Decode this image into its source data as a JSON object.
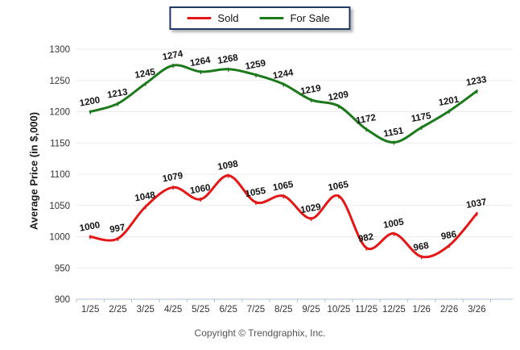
{
  "legend": {
    "items": [
      {
        "label": "Sold",
        "color": "#e31717"
      },
      {
        "label": "For Sale",
        "color": "#1c7a1c"
      }
    ]
  },
  "footer": {
    "copyright": "Copyright © Trendgraphix, Inc."
  },
  "chart_data": {
    "type": "line",
    "categories": [
      "1/25",
      "2/25",
      "3/25",
      "4/25",
      "5/25",
      "6/25",
      "7/25",
      "8/25",
      "9/25",
      "10/25",
      "11/25",
      "12/25",
      "1/26",
      "2/26",
      "3/26"
    ],
    "series": [
      {
        "name": "Sold",
        "color": "#e31717",
        "values": [
          1000,
          997,
          1048,
          1079,
          1060,
          1098,
          1055,
          1065,
          1029,
          1065,
          982,
          1005,
          968,
          986,
          1037
        ]
      },
      {
        "name": "For Sale",
        "color": "#1c7a1c",
        "values": [
          1200,
          1213,
          1245,
          1274,
          1264,
          1268,
          1259,
          1244,
          1219,
          1209,
          1172,
          1151,
          1175,
          1201,
          1233
        ]
      }
    ],
    "title": "",
    "xlabel": "",
    "ylabel": "Average Price (in $,000)",
    "ylim": [
      900,
      1300
    ],
    "ytick_step": 50,
    "grid": true,
    "legend_position": "top-center",
    "axis_color": "#b3bfcc",
    "grid_color": "#ebebeb",
    "label_color": "#111111",
    "tick_color": "#333333"
  }
}
